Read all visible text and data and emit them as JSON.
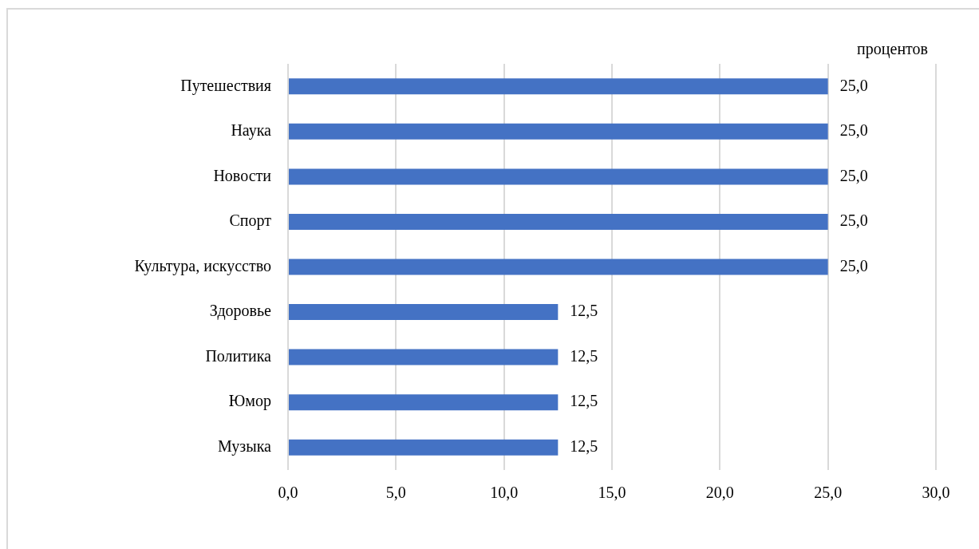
{
  "chart_data": {
    "type": "bar",
    "orientation": "horizontal",
    "xlabel": "процентов",
    "categories": [
      "Путешествия",
      "Наука",
      "Новости",
      "Спорт",
      "Культура, искусство",
      "Здоровье",
      "Политика",
      "Юмор",
      "Музыка"
    ],
    "values": [
      25.0,
      25.0,
      25.0,
      25.0,
      25.0,
      12.5,
      12.5,
      12.5,
      12.5
    ],
    "value_labels": [
      "25,0",
      "25,0",
      "25,0",
      "25,0",
      "25,0",
      "12,5",
      "12,5",
      "12,5",
      "12,5"
    ],
    "color": "#4472c4",
    "xlim": [
      0,
      30
    ],
    "xticks": [
      {
        "value": 0,
        "label": "0,0"
      },
      {
        "value": 5,
        "label": "5,0"
      },
      {
        "value": 10,
        "label": "10,0"
      },
      {
        "value": 15,
        "label": "15,0"
      },
      {
        "value": 20,
        "label": "20,0"
      },
      {
        "value": 25,
        "label": "25,0"
      },
      {
        "value": 30,
        "label": "30,0"
      }
    ],
    "grid": "x",
    "legend": false
  }
}
